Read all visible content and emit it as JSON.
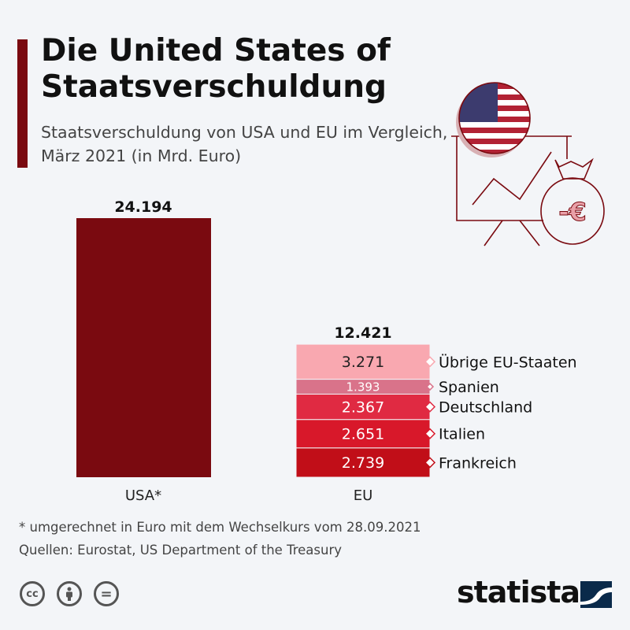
{
  "header": {
    "title": "Die United States of Staatsverschuldung",
    "subtitle": "Staatsverschuldung von USA und EU im Vergleich, März 2021 (in Mrd. Euro)"
  },
  "chart_data": {
    "type": "bar",
    "stacked": true,
    "categories": [
      "USA*",
      "EU"
    ],
    "totals": [
      "24.194",
      "12.421"
    ],
    "series": [
      {
        "category": "USA*",
        "value": 24194,
        "color": "#7a0a10"
      }
    ],
    "eu_stack": [
      {
        "name": "Frankreich",
        "value": 2739,
        "label": "2.739",
        "color": "#c10e18"
      },
      {
        "name": "Italien",
        "value": 2651,
        "label": "2.651",
        "color": "#d8182a"
      },
      {
        "name": "Deutschland",
        "value": 2367,
        "label": "2.367",
        "color": "#e02a42"
      },
      {
        "name": "Spanien",
        "value": 1393,
        "label": "1.393",
        "color": "#d9738a"
      },
      {
        "name": "Übrige EU-Staaten",
        "value": 3271,
        "label": "3.271",
        "color": "#f9a8b0"
      }
    ],
    "grid": false
  },
  "footer": {
    "note": "* umgerechnet in Euro mit dem Wechselkurs vom 28.09.2021",
    "source": "Quellen: Eurostat, US Department of the Treasury",
    "license_icons": [
      "cc-icon",
      "attribution-icon",
      "no-derivatives-icon"
    ],
    "cc": "cc",
    "nd": "=",
    "brand": "statista"
  }
}
